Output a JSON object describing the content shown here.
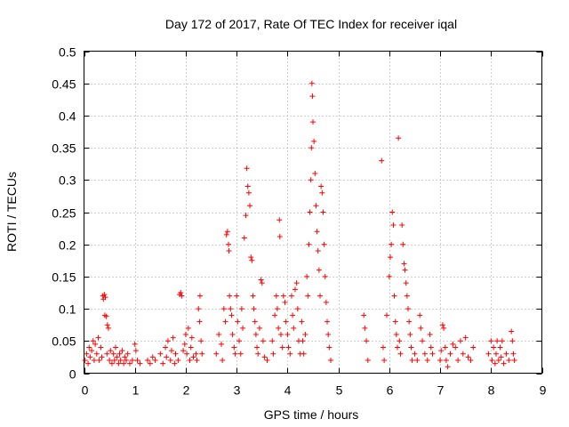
{
  "chart_data": {
    "type": "scatter",
    "title": "Day 172 of 2017, Rate Of TEC Index for receiver iqal",
    "xlabel": "GPS time / hours",
    "ylabel": "ROTI / TECUs",
    "xlim": [
      0,
      9
    ],
    "ylim": [
      0,
      0.5
    ],
    "xticks": [
      0,
      1,
      2,
      3,
      4,
      5,
      6,
      7,
      8,
      9
    ],
    "xtick_labels": [
      "0",
      "1",
      "2",
      "3",
      "4",
      "5",
      "6",
      "7",
      "8",
      "9"
    ],
    "yticks": [
      0,
      0.05,
      0.1,
      0.15,
      0.2,
      0.25,
      0.3,
      0.35,
      0.4,
      0.45,
      0.5
    ],
    "ytick_labels": [
      "0",
      "0.05",
      "0.1",
      "0.15",
      "0.2",
      "0.25",
      "0.3",
      "0.35",
      "0.4",
      "0.45",
      "0.5"
    ],
    "grid": true,
    "marker": "+",
    "color": "#ff0000",
    "series": [
      {
        "name": "ROTI",
        "points": [
          [
            0.02,
            0.02
          ],
          [
            0.05,
            0.03
          ],
          [
            0.08,
            0.015
          ],
          [
            0.1,
            0.04
          ],
          [
            0.12,
            0.025
          ],
          [
            0.15,
            0.035
          ],
          [
            0.18,
            0.05
          ],
          [
            0.2,
            0.02
          ],
          [
            0.22,
            0.045
          ],
          [
            0.25,
            0.03
          ],
          [
            0.28,
            0.055
          ],
          [
            0.3,
            0.02
          ],
          [
            0.33,
            0.04
          ],
          [
            0.35,
            0.025
          ],
          [
            0.37,
            0.12
          ],
          [
            0.38,
            0.115
          ],
          [
            0.4,
            0.122
          ],
          [
            0.42,
            0.118
          ],
          [
            0.41,
            0.09
          ],
          [
            0.44,
            0.088
          ],
          [
            0.46,
            0.075
          ],
          [
            0.48,
            0.07
          ],
          [
            0.45,
            0.03
          ],
          [
            0.5,
            0.02
          ],
          [
            0.52,
            0.035
          ],
          [
            0.55,
            0.015
          ],
          [
            0.58,
            0.03
          ],
          [
            0.6,
            0.02
          ],
          [
            0.62,
            0.04
          ],
          [
            0.65,
            0.025
          ],
          [
            0.68,
            0.015
          ],
          [
            0.7,
            0.03
          ],
          [
            0.72,
            0.02
          ],
          [
            0.75,
            0.035
          ],
          [
            0.78,
            0.015
          ],
          [
            0.8,
            0.025
          ],
          [
            0.83,
            0.02
          ],
          [
            0.86,
            0.03
          ],
          [
            0.9,
            0.015
          ],
          [
            0.95,
            0.02
          ],
          [
            1.0,
            0.045
          ],
          [
            1.02,
            0.035
          ],
          [
            1.05,
            0.02
          ],
          [
            1.1,
            0.015
          ],
          [
            1.25,
            0.02
          ],
          [
            1.3,
            0.015
          ],
          [
            1.35,
            0.025
          ],
          [
            1.4,
            0.02
          ],
          [
            1.5,
            0.03
          ],
          [
            1.55,
            0.015
          ],
          [
            1.6,
            0.04
          ],
          [
            1.62,
            0.025
          ],
          [
            1.65,
            0.05
          ],
          [
            1.7,
            0.02
          ],
          [
            1.72,
            0.035
          ],
          [
            1.75,
            0.055
          ],
          [
            1.78,
            0.015
          ],
          [
            1.8,
            0.03
          ],
          [
            1.85,
            0.02
          ],
          [
            1.88,
            0.122
          ],
          [
            1.9,
            0.125
          ],
          [
            1.92,
            0.12
          ],
          [
            1.95,
            0.035
          ],
          [
            1.98,
            0.045
          ],
          [
            2.0,
            0.06
          ],
          [
            2.02,
            0.03
          ],
          [
            2.05,
            0.07
          ],
          [
            2.08,
            0.02
          ],
          [
            2.1,
            0.04
          ],
          [
            2.12,
            0.055
          ],
          [
            2.15,
            0.025
          ],
          [
            2.2,
            0.03
          ],
          [
            2.22,
            0.02
          ],
          [
            2.25,
            0.1
          ],
          [
            2.27,
            0.08
          ],
          [
            2.28,
            0.12
          ],
          [
            2.3,
            0.05
          ],
          [
            2.32,
            0.03
          ],
          [
            2.6,
            0.03
          ],
          [
            2.65,
            0.06
          ],
          [
            2.7,
            0.045
          ],
          [
            2.72,
            0.02
          ],
          [
            2.75,
            0.1
          ],
          [
            2.78,
            0.08
          ],
          [
            2.8,
            0.215
          ],
          [
            2.82,
            0.22
          ],
          [
            2.84,
            0.2
          ],
          [
            2.85,
            0.19
          ],
          [
            2.86,
            0.12
          ],
          [
            2.88,
            0.1
          ],
          [
            2.9,
            0.09
          ],
          [
            2.92,
            0.06
          ],
          [
            2.95,
            0.04
          ],
          [
            2.97,
            0.03
          ],
          [
            3.0,
            0.12
          ],
          [
            3.02,
            0.08
          ],
          [
            3.05,
            0.05
          ],
          [
            3.08,
            0.03
          ],
          [
            3.1,
            0.1
          ],
          [
            3.12,
            0.07
          ],
          [
            3.15,
            0.21
          ],
          [
            3.18,
            0.245
          ],
          [
            3.2,
            0.318
          ],
          [
            3.22,
            0.29
          ],
          [
            3.24,
            0.28
          ],
          [
            3.26,
            0.26
          ],
          [
            3.28,
            0.18
          ],
          [
            3.3,
            0.175
          ],
          [
            3.32,
            0.12
          ],
          [
            3.34,
            0.1
          ],
          [
            3.36,
            0.08
          ],
          [
            3.38,
            0.06
          ],
          [
            3.4,
            0.04
          ],
          [
            3.42,
            0.03
          ],
          [
            3.45,
            0.07
          ],
          [
            3.48,
            0.145
          ],
          [
            3.5,
            0.14
          ],
          [
            3.52,
            0.05
          ],
          [
            3.55,
            0.025
          ],
          [
            3.6,
            0.02
          ],
          [
            3.7,
            0.05
          ],
          [
            3.72,
            0.03
          ],
          [
            3.75,
            0.09
          ],
          [
            3.78,
            0.12
          ],
          [
            3.8,
            0.1
          ],
          [
            3.82,
            0.07
          ],
          [
            3.84,
            0.238
          ],
          [
            3.85,
            0.212
          ],
          [
            3.87,
            0.06
          ],
          [
            3.9,
            0.04
          ],
          [
            3.92,
            0.12
          ],
          [
            3.95,
            0.11
          ],
          [
            3.97,
            0.08
          ],
          [
            4.0,
            0.06
          ],
          [
            4.02,
            0.04
          ],
          [
            4.05,
            0.03
          ],
          [
            4.08,
            0.12
          ],
          [
            4.1,
            0.09
          ],
          [
            4.12,
            0.07
          ],
          [
            4.15,
            0.13
          ],
          [
            4.18,
            0.14
          ],
          [
            4.2,
            0.1
          ],
          [
            4.22,
            0.05
          ],
          [
            4.25,
            0.03
          ],
          [
            4.28,
            0.08
          ],
          [
            4.3,
            0.05
          ],
          [
            4.32,
            0.03
          ],
          [
            4.35,
            0.06
          ],
          [
            4.38,
            0.15
          ],
          [
            4.4,
            0.12
          ],
          [
            4.42,
            0.2
          ],
          [
            4.44,
            0.25
          ],
          [
            4.46,
            0.3
          ],
          [
            4.47,
            0.35
          ],
          [
            4.48,
            0.45
          ],
          [
            4.49,
            0.43
          ],
          [
            4.5,
            0.39
          ],
          [
            4.52,
            0.36
          ],
          [
            4.54,
            0.31
          ],
          [
            4.56,
            0.26
          ],
          [
            4.58,
            0.22
          ],
          [
            4.6,
            0.19
          ],
          [
            4.62,
            0.16
          ],
          [
            4.64,
            0.12
          ],
          [
            4.66,
            0.29
          ],
          [
            4.68,
            0.28
          ],
          [
            4.7,
            0.25
          ],
          [
            4.72,
            0.2
          ],
          [
            4.74,
            0.15
          ],
          [
            4.76,
            0.11
          ],
          [
            4.78,
            0.08
          ],
          [
            4.8,
            0.06
          ],
          [
            4.82,
            0.04
          ],
          [
            4.85,
            0.02
          ],
          [
            5.5,
            0.09
          ],
          [
            5.52,
            0.07
          ],
          [
            5.55,
            0.05
          ],
          [
            5.58,
            0.02
          ],
          [
            5.85,
            0.33
          ],
          [
            5.88,
            0.04
          ],
          [
            5.9,
            0.02
          ],
          [
            5.95,
            0.09
          ],
          [
            6.0,
            0.15
          ],
          [
            6.02,
            0.18
          ],
          [
            6.04,
            0.2
          ],
          [
            6.06,
            0.25
          ],
          [
            6.08,
            0.23
          ],
          [
            6.1,
            0.12
          ],
          [
            6.12,
            0.08
          ],
          [
            6.14,
            0.06
          ],
          [
            6.16,
            0.04
          ],
          [
            6.18,
            0.365
          ],
          [
            6.2,
            0.05
          ],
          [
            6.22,
            0.03
          ],
          [
            6.25,
            0.23
          ],
          [
            6.27,
            0.2
          ],
          [
            6.29,
            0.17
          ],
          [
            6.31,
            0.16
          ],
          [
            6.33,
            0.14
          ],
          [
            6.35,
            0.12
          ],
          [
            6.37,
            0.1
          ],
          [
            6.39,
            0.08
          ],
          [
            6.41,
            0.06
          ],
          [
            6.43,
            0.04
          ],
          [
            6.45,
            0.02
          ],
          [
            6.5,
            0.03
          ],
          [
            6.55,
            0.02
          ],
          [
            6.6,
            0.09
          ],
          [
            6.62,
            0.07
          ],
          [
            6.65,
            0.05
          ],
          [
            6.7,
            0.03
          ],
          [
            6.75,
            0.02
          ],
          [
            6.8,
            0.06
          ],
          [
            6.82,
            0.04
          ],
          [
            6.85,
            0.03
          ],
          [
            7.0,
            0.02
          ],
          [
            7.02,
            0.035
          ],
          [
            7.05,
            0.075
          ],
          [
            7.07,
            0.07
          ],
          [
            7.1,
            0.04
          ],
          [
            7.12,
            0.02
          ],
          [
            7.15,
            0.01
          ],
          [
            7.2,
            0.03
          ],
          [
            7.25,
            0.045
          ],
          [
            7.3,
            0.04
          ],
          [
            7.35,
            0.02
          ],
          [
            7.4,
            0.05
          ],
          [
            7.45,
            0.03
          ],
          [
            7.5,
            0.055
          ],
          [
            7.55,
            0.025
          ],
          [
            7.6,
            0.02
          ],
          [
            7.65,
            0.04
          ],
          [
            7.95,
            0.03
          ],
          [
            8.0,
            0.05
          ],
          [
            8.02,
            0.02
          ],
          [
            8.05,
            0.04
          ],
          [
            8.08,
            0.015
          ],
          [
            8.1,
            0.03
          ],
          [
            8.12,
            0.05
          ],
          [
            8.15,
            0.02
          ],
          [
            8.18,
            0.04
          ],
          [
            8.2,
            0.025
          ],
          [
            8.22,
            0.05
          ],
          [
            8.25,
            0.015
          ],
          [
            8.3,
            0.03
          ],
          [
            8.35,
            0.02
          ],
          [
            8.4,
            0.065
          ],
          [
            8.42,
            0.05
          ],
          [
            8.44,
            0.03
          ],
          [
            8.46,
            0.02
          ]
        ]
      }
    ]
  }
}
